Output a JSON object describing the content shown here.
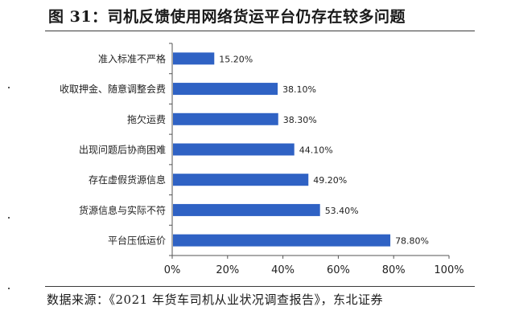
{
  "figure": {
    "title": "图 31：司机反馈使用网络货运平台仍存在较多问题",
    "source": "数据来源：《2021 年货车司机从业状况调查报告》，东北证券"
  },
  "chart_data": {
    "type": "bar",
    "orientation": "horizontal",
    "categories": [
      "准入标准不严格",
      "收取押金、随意调整会费",
      "拖欠运费",
      "出现问题后协商困难",
      "存在虚假货源信息",
      "货源信息与实际不符",
      "平台压低运价"
    ],
    "values": [
      15.2,
      38.1,
      38.3,
      44.1,
      49.2,
      53.4,
      78.8
    ],
    "value_labels": [
      "15.20%",
      "38.10%",
      "38.30%",
      "44.10%",
      "49.20%",
      "53.40%",
      "78.80%"
    ],
    "xlim": [
      0,
      100
    ],
    "xticks": [
      "0%",
      "20%",
      "40%",
      "60%",
      "80%",
      "100%"
    ],
    "title": "",
    "xlabel": "",
    "ylabel": "",
    "grid": false,
    "legend": "none",
    "bar_color": "#2f62c4"
  }
}
